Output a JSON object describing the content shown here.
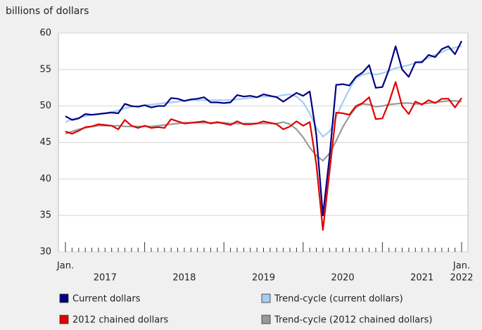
{
  "chart_data": {
    "type": "line",
    "y_axis_label": "billions of dollars",
    "month_label": "Jan.",
    "year_labels": [
      "2017",
      "2018",
      "2019",
      "2020",
      "2021",
      "2022"
    ],
    "x": [
      "2017-01",
      "2017-02",
      "2017-03",
      "2017-04",
      "2017-05",
      "2017-06",
      "2017-07",
      "2017-08",
      "2017-09",
      "2017-10",
      "2017-11",
      "2017-12",
      "2018-01",
      "2018-02",
      "2018-03",
      "2018-04",
      "2018-05",
      "2018-06",
      "2018-07",
      "2018-08",
      "2018-09",
      "2018-10",
      "2018-11",
      "2018-12",
      "2019-01",
      "2019-02",
      "2019-03",
      "2019-04",
      "2019-05",
      "2019-06",
      "2019-07",
      "2019-08",
      "2019-09",
      "2019-10",
      "2019-11",
      "2019-12",
      "2020-01",
      "2020-02",
      "2020-03",
      "2020-04",
      "2020-05",
      "2020-06",
      "2020-07",
      "2020-08",
      "2020-09",
      "2020-10",
      "2020-11",
      "2020-12",
      "2021-01",
      "2021-02",
      "2021-03",
      "2021-04",
      "2021-05",
      "2021-06",
      "2021-07",
      "2021-08",
      "2021-09",
      "2021-10",
      "2021-11",
      "2021-12",
      "2022-01"
    ],
    "series": [
      {
        "name": "Current dollars",
        "color": "#000080",
        "values": [
          48.6,
          48.1,
          48.3,
          48.9,
          48.8,
          48.9,
          49.0,
          49.1,
          49.0,
          50.3,
          50.0,
          49.9,
          50.1,
          49.8,
          50.0,
          50.0,
          51.1,
          51.0,
          50.7,
          50.9,
          51.0,
          51.2,
          50.5,
          50.5,
          50.4,
          50.5,
          51.5,
          51.3,
          51.4,
          51.2,
          51.6,
          51.4,
          51.2,
          50.6,
          51.2,
          51.8,
          51.4,
          52.0,
          46.0,
          35.0,
          43.0,
          52.9,
          53.0,
          52.8,
          54.0,
          54.6,
          55.6,
          52.5,
          52.6,
          55.0,
          58.2,
          55.0,
          54.0,
          56.0,
          56.0,
          57.0,
          56.7,
          57.8,
          58.2,
          57.1,
          58.9
        ]
      },
      {
        "name": "Trend-cycle (current dollars)",
        "color": "#a6cdf0",
        "values": [
          47.8,
          48.2,
          48.4,
          48.6,
          48.8,
          48.9,
          49.0,
          49.2,
          49.4,
          49.7,
          49.9,
          50.0,
          50.1,
          50.2,
          50.3,
          50.4,
          50.5,
          50.6,
          50.7,
          50.8,
          50.8,
          50.8,
          50.8,
          50.8,
          50.8,
          50.8,
          50.9,
          51.0,
          51.1,
          51.2,
          51.3,
          51.3,
          51.3,
          51.5,
          51.6,
          51.3,
          50.5,
          49.0,
          47.0,
          45.8,
          46.5,
          48.5,
          50.5,
          52.3,
          53.8,
          54.3,
          54.5,
          54.3,
          54.5,
          54.8,
          55.2,
          55.4,
          55.6,
          55.9,
          56.2,
          56.6,
          57.0,
          57.4,
          57.8,
          58.0,
          58.2
        ]
      },
      {
        "name": "2012 chained dollars",
        "color": "#e00000",
        "values": [
          46.5,
          46.2,
          46.6,
          47.1,
          47.2,
          47.5,
          47.4,
          47.3,
          46.8,
          48.1,
          47.3,
          47.0,
          47.3,
          47.0,
          47.1,
          47.0,
          48.2,
          47.9,
          47.6,
          47.7,
          47.8,
          47.9,
          47.6,
          47.8,
          47.6,
          47.4,
          47.9,
          47.5,
          47.5,
          47.6,
          47.9,
          47.7,
          47.5,
          46.8,
          47.2,
          47.9,
          47.3,
          47.8,
          42.0,
          33.0,
          41.0,
          49.1,
          49.0,
          48.8,
          50.0,
          50.4,
          51.2,
          48.2,
          48.3,
          50.5,
          53.3,
          50.0,
          48.9,
          50.6,
          50.2,
          50.8,
          50.4,
          51.0,
          51.0,
          49.8,
          51.1
        ]
      },
      {
        "name": "Trend-cycle (2012 chained dollars)",
        "color": "#999999",
        "values": [
          46.2,
          46.5,
          46.8,
          47.0,
          47.2,
          47.3,
          47.3,
          47.3,
          47.3,
          47.2,
          47.2,
          47.2,
          47.2,
          47.2,
          47.3,
          47.4,
          47.5,
          47.6,
          47.7,
          47.7,
          47.7,
          47.7,
          47.7,
          47.7,
          47.7,
          47.6,
          47.6,
          47.6,
          47.6,
          47.6,
          47.6,
          47.6,
          47.6,
          47.8,
          47.5,
          46.8,
          45.7,
          44.3,
          43.2,
          42.5,
          43.5,
          45.2,
          47.1,
          48.6,
          49.8,
          50.3,
          50.2,
          49.9,
          50.0,
          50.2,
          50.3,
          50.4,
          50.4,
          50.3,
          50.3,
          50.4,
          50.5,
          50.6,
          50.7,
          50.7,
          50.6
        ]
      }
    ],
    "ylim": [
      30,
      60
    ],
    "yticks": [
      30,
      35,
      40,
      45,
      50,
      55,
      60
    ],
    "grid": true
  }
}
